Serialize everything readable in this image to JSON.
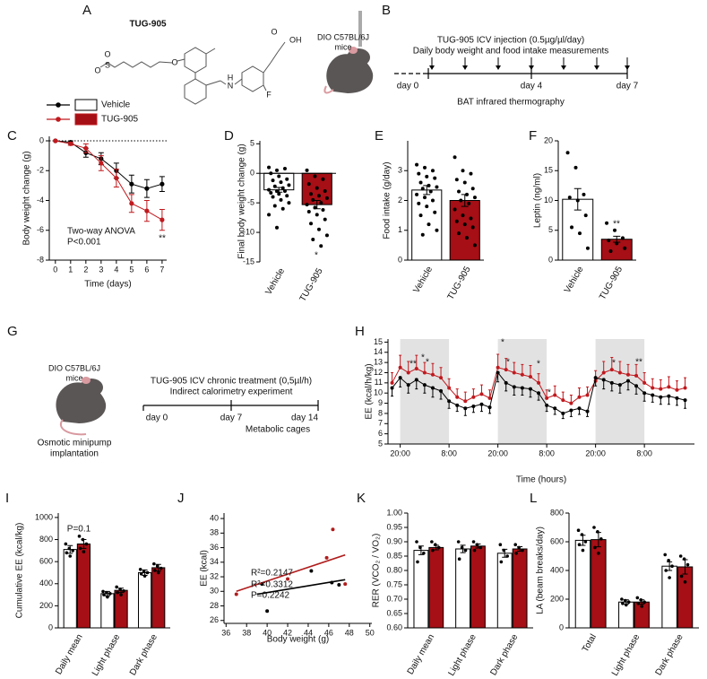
{
  "diagrams": [
    {
      "panel": "A",
      "title": "TUG-905",
      "structure_labels": [
        "O",
        "S",
        "O",
        "O",
        "H",
        "N",
        "F",
        "O",
        "OH"
      ]
    },
    {
      "panel": "B",
      "mouse_label": [
        "DIO C57BL/6J",
        "mice"
      ],
      "header": [
        "TUG-905 ICV injection (0.5µg/µl/day)",
        "Daily body weight and food intake measurements"
      ],
      "days": [
        "day 0",
        "day 4",
        "day 7"
      ],
      "footer": "BAT infrared thermography"
    },
    {
      "panel": "G",
      "mouse_label": [
        "DIO C57BL/6J",
        "mice"
      ],
      "header": [
        "TUG-905 ICV chronic treatment (0,5µl/h)",
        "Indirect calorimetry experiment"
      ],
      "days": [
        "day 0",
        "day 7",
        "day 14"
      ],
      "footer": "Metabolic cages",
      "note": [
        "Osmotic minipump",
        "implantation"
      ]
    }
  ],
  "chart_data": [
    {
      "panel": "C",
      "type": "line",
      "xlabel": "Time (days)",
      "ylabel": "Body weight change (g)",
      "x": [
        0,
        1,
        2,
        3,
        4,
        5,
        6,
        7
      ],
      "xlim": [
        -0.4,
        7.3
      ],
      "xticks": [
        0,
        1,
        2,
        3,
        4,
        5,
        6,
        7
      ],
      "ylim": [
        -8,
        0.3
      ],
      "yticks": [
        0,
        -2,
        -4,
        -6,
        -8
      ],
      "hline": 0,
      "series": [
        {
          "name": "Vehicle",
          "color": "#000000",
          "fill": "#ffffff",
          "values": [
            0,
            -0.1,
            -0.8,
            -1.2,
            -2.0,
            -2.9,
            -3.2,
            -2.9
          ],
          "errors": [
            0,
            0.1,
            0.3,
            0.4,
            0.5,
            0.6,
            0.6,
            0.5
          ]
        },
        {
          "name": "TUG-905",
          "color": "#c0191e",
          "fill": "#a50f15",
          "values": [
            0,
            -0.2,
            -0.5,
            -1.5,
            -2.5,
            -4.2,
            -4.7,
            -5.3
          ],
          "errors": [
            0,
            0.1,
            0.3,
            0.5,
            0.6,
            0.6,
            0.7,
            0.7
          ]
        }
      ],
      "annotations": [
        "Two-way ANOVA",
        "P<0.001",
        "**"
      ]
    },
    {
      "panel": "D",
      "type": "bar",
      "ylabel": "Final body weight change (g)",
      "categories": [
        "Vehicle",
        "TUG-905"
      ],
      "colors": [
        "#ffffff",
        "#a50f15"
      ],
      "values": [
        -2.8,
        -5.3
      ],
      "errors": [
        0.4,
        0.7
      ],
      "points": [
        [
          1,
          0.5,
          0.8,
          0,
          -0.5,
          -1,
          -1.2,
          -1.5,
          -2,
          -2.2,
          -2.5,
          -2.8,
          -3,
          -3,
          -3.3,
          -3.5,
          -3.8,
          -4,
          -4.5,
          -5,
          -5.5,
          -6,
          -7,
          -9.2
        ],
        [
          0.5,
          -0.5,
          -1,
          -1.8,
          -2.5,
          -3,
          -3.5,
          -3.8,
          -4.2,
          -4.5,
          -5,
          -5.3,
          -5.8,
          -6.2,
          -6.5,
          -7,
          -7.8,
          -8.5,
          -9.5,
          -10.5,
          -11.2,
          -12.3
        ]
      ],
      "ylim": [
        -15,
        5.5
      ],
      "yticks": [
        5,
        0,
        -5,
        -10,
        -15
      ],
      "annotations": [
        "*"
      ]
    },
    {
      "panel": "E",
      "type": "bar",
      "ylabel": "Food intake (g/day)",
      "categories": [
        "Vehicle",
        "TUG-905"
      ],
      "colors": [
        "#ffffff",
        "#a50f15"
      ],
      "values": [
        2.35,
        2.0
      ],
      "errors": [
        0.15,
        0.2
      ],
      "points": [
        [
          3.2,
          3.1,
          3.0,
          2.9,
          2.8,
          2.75,
          2.6,
          2.5,
          2.45,
          2.4,
          2.3,
          2.2,
          2.1,
          2.0,
          1.9,
          1.8,
          1.6,
          1.5,
          1.2,
          1.0,
          0.85
        ],
        [
          3.45,
          3.0,
          2.9,
          2.7,
          2.6,
          2.4,
          2.3,
          2.2,
          2.1,
          2.0,
          1.9,
          1.7,
          1.5,
          1.4,
          1.3,
          1.2,
          1.1,
          0.9,
          0.75,
          0.5
        ]
      ],
      "ylim": [
        0,
        4
      ],
      "yticks": [
        0,
        1,
        2,
        3
      ]
    },
    {
      "panel": "F",
      "type": "bar",
      "ylabel": "Leptin (ng/ml)",
      "categories": [
        "Vehicle",
        "TUG-905"
      ],
      "colors": [
        "#ffffff",
        "#a50f15"
      ],
      "values": [
        10.2,
        3.5
      ],
      "errors": [
        1.8,
        0.5
      ],
      "points": [
        [
          18,
          15.5,
          11,
          10.5,
          10,
          7.5,
          5.5,
          4.5,
          2
        ],
        [
          6.2,
          5,
          3.7,
          3.3,
          2.8,
          2,
          1.5
        ]
      ],
      "ylim": [
        0,
        20
      ],
      "yticks": [
        0,
        5,
        10,
        15,
        20
      ],
      "annotations": [
        "**"
      ]
    },
    {
      "panel": "H",
      "type": "line",
      "xlabel": "Time (hours)",
      "ylabel": "EE (kcal/h/kg)",
      "x": [
        -2,
        0,
        2,
        4,
        6,
        8,
        10,
        12,
        14,
        16,
        18,
        20,
        22,
        24,
        26,
        28,
        30,
        32,
        34,
        36,
        38,
        40,
        42,
        44,
        46,
        48,
        50,
        52,
        54,
        56,
        58,
        60,
        62,
        64,
        66,
        68,
        70
      ],
      "xlim": [
        -3,
        72.3
      ],
      "xticks": [
        {
          "value": 0,
          "label": "20:00"
        },
        {
          "value": 12,
          "label": "8:00"
        },
        {
          "value": 24,
          "label": "20:00"
        },
        {
          "value": 36,
          "label": "8:00"
        },
        {
          "value": 48,
          "label": "20:00"
        },
        {
          "value": 60,
          "label": "8:00"
        }
      ],
      "ylim": [
        5,
        15.3
      ],
      "yticks": [
        5,
        6,
        7,
        8,
        9,
        10,
        11,
        12,
        13,
        14,
        15
      ],
      "shaded": [
        [
          0,
          12
        ],
        [
          24,
          36
        ],
        [
          48,
          60
        ]
      ],
      "series": [
        {
          "color": "#c0191e",
          "error_direction": "up",
          "values": [
            11.0,
            12.5,
            12.0,
            12.4,
            12.0,
            11.8,
            11.5,
            10.5,
            9.6,
            9.2,
            9.6,
            9.9,
            9.5,
            12.5,
            12.3,
            12.0,
            11.8,
            11.6,
            11.0,
            9.5,
            9.8,
            9.3,
            9.0,
            9.6,
            9.8,
            11.2,
            12.0,
            12.3,
            12.0,
            11.8,
            11.7,
            11.0,
            10.5,
            10.4,
            10.6,
            10.3,
            10.5
          ],
          "errors": [
            1.0,
            1.2,
            1.1,
            1.3,
            1.0,
            1.1,
            1.0,
            0.9,
            0.8,
            0.9,
            0.8,
            0.9,
            0.8,
            1.3,
            1.1,
            1.0,
            1.0,
            1.1,
            0.9,
            0.8,
            0.9,
            0.8,
            0.8,
            0.9,
            0.8,
            1.0,
            1.1,
            1.2,
            1.1,
            1.0,
            1.1,
            1.0,
            0.9,
            0.9,
            1.0,
            0.9,
            1.0
          ]
        },
        {
          "color": "#000000",
          "error_direction": "down",
          "values": [
            10.5,
            11.5,
            10.8,
            11.3,
            10.8,
            10.5,
            10.2,
            9.2,
            8.8,
            8.5,
            8.7,
            8.9,
            8.6,
            12.0,
            11.0,
            10.6,
            10.5,
            10.4,
            10.0,
            8.8,
            8.5,
            8.0,
            8.3,
            8.5,
            8.2,
            11.5,
            11.3,
            11.0,
            10.8,
            11.2,
            10.7,
            10.0,
            9.8,
            9.6,
            9.7,
            9.5,
            9.3
          ],
          "errors": [
            0.8,
            0.9,
            0.8,
            0.9,
            0.8,
            0.9,
            0.8,
            0.7,
            0.6,
            0.7,
            0.6,
            0.7,
            0.6,
            0.9,
            0.8,
            0.8,
            0.7,
            0.8,
            0.7,
            0.6,
            0.6,
            0.5,
            0.6,
            0.6,
            0.5,
            0.8,
            0.9,
            0.8,
            0.8,
            0.9,
            0.8,
            0.8,
            0.7,
            0.7,
            0.8,
            0.7,
            0.8
          ]
        }
      ],
      "annotations": [
        "**",
        "*",
        "*",
        "*",
        "*",
        "*",
        "*",
        "*",
        "**"
      ]
    },
    {
      "panel": "I",
      "type": "grouped_bar",
      "ylabel": "Cumulative EE (kcal/kg)",
      "categories": [
        "Daily mean",
        "Light phase",
        "Dark phase"
      ],
      "ylim": [
        0,
        1040
      ],
      "yticks": [
        0,
        200,
        400,
        600,
        800,
        1000
      ],
      "series": [
        {
          "color": "#ffffff",
          "values": [
            710,
            310,
            500
          ],
          "errors": [
            35,
            20,
            25
          ],
          "points": [
            [
              760,
              720,
              700,
              680,
              650
            ],
            [
              330,
              320,
              310,
              300,
              280
            ],
            [
              530,
              510,
              500,
              490,
              470
            ]
          ]
        },
        {
          "color": "#a50f15",
          "values": [
            760,
            340,
            545
          ],
          "errors": [
            40,
            20,
            30
          ],
          "points": [
            [
              830,
              800,
              760,
              720,
              690
            ],
            [
              370,
              350,
              335,
              320,
              300
            ],
            [
              580,
              560,
              540,
              520,
              500
            ]
          ]
        }
      ],
      "annotations": [
        "P=0.1"
      ]
    },
    {
      "panel": "J",
      "type": "scatter",
      "xlabel": "Body weight (g)",
      "ylabel": "EE (kcal)",
      "xlim": [
        35.8,
        50.2
      ],
      "xticks": [
        36,
        38,
        40,
        42,
        44,
        46,
        48,
        50
      ],
      "ylim": [
        25.6,
        40.75
      ],
      "yticks": [
        26,
        28,
        30,
        32,
        34,
        36,
        38,
        40
      ],
      "series": [
        {
          "color": "#000000",
          "x": [
            39.5,
            40,
            44.3,
            46.3,
            47
          ],
          "values": [
            31.0,
            27.3,
            32.8,
            31.2,
            30.9
          ],
          "fit_x": [
            39,
            47.6
          ],
          "fit": [
            29.6,
            31.6
          ]
        },
        {
          "color": "#b01c1c",
          "x": [
            37,
            42,
            45.8,
            46.4,
            47.6
          ],
          "values": [
            29.6,
            31.7,
            34.6,
            38.5,
            31.0
          ],
          "fit_x": [
            37,
            47.6
          ],
          "fit": [
            30.0,
            35.0
          ]
        }
      ],
      "annotations": [
        "R²=0.2147",
        "R²=0.3312",
        "P=0.2242"
      ]
    },
    {
      "panel": "K",
      "type": "grouped_bar",
      "ylabel": "RER (VCO₂ / VO₂)",
      "categories": [
        "Daily mean",
        "Light phase",
        "Dark phase"
      ],
      "ylim": [
        0.6,
        1.0
      ],
      "yticks": [
        {
          "value": 0.6,
          "label": "0.60"
        },
        {
          "value": 0.65,
          "label": "0.65"
        },
        {
          "value": 0.7,
          "label": "0.70"
        },
        {
          "value": 0.75,
          "label": "0.75"
        },
        {
          "value": 0.8,
          "label": "0.80"
        },
        {
          "value": 0.85,
          "label": "0.85"
        },
        {
          "value": 0.9,
          "label": "0.90"
        },
        {
          "value": 0.95,
          "label": "0.95"
        },
        {
          "value": 1.0,
          "label": "1.00"
        }
      ],
      "series": [
        {
          "color": "#ffffff",
          "values": [
            0.87,
            0.875,
            0.86
          ],
          "errors": [
            0.015,
            0.013,
            0.014
          ],
          "points": [
            [
              0.9,
              0.88,
              0.86,
              0.83
            ],
            [
              0.9,
              0.88,
              0.87,
              0.84
            ],
            [
              0.89,
              0.87,
              0.85,
              0.83
            ]
          ]
        },
        {
          "color": "#a50f15",
          "values": [
            0.88,
            0.885,
            0.875
          ],
          "errors": [
            0.008,
            0.007,
            0.008
          ],
          "points": [
            [
              0.9,
              0.89,
              0.88,
              0.87
            ],
            [
              0.9,
              0.89,
              0.88,
              0.87
            ],
            [
              0.89,
              0.88,
              0.87,
              0.86
            ]
          ]
        }
      ]
    },
    {
      "panel": "L",
      "type": "grouped_bar",
      "ylabel": "LA (beam breaks/day)",
      "categories": [
        "Total",
        "Light phase",
        "Dark phase"
      ],
      "ylim": [
        0,
        800
      ],
      "yticks": [
        0,
        200,
        400,
        600,
        800
      ],
      "series": [
        {
          "color": "#ffffff",
          "values": [
            610,
            180,
            430
          ],
          "errors": [
            35,
            15,
            30
          ],
          "points": [
            [
              680,
              650,
              600,
              580,
              540
            ],
            [
              200,
              190,
              180,
              170,
              160
            ],
            [
              510,
              470,
              430,
              400,
              350
            ]
          ]
        },
        {
          "color": "#a50f15",
          "values": [
            615,
            180,
            425
          ],
          "errors": [
            50,
            15,
            50
          ],
          "points": [
            [
              700,
              670,
              620,
              560,
              520
            ],
            [
              210,
              195,
              180,
              170,
              150
            ],
            [
              500,
              480,
              440,
              360,
              320
            ]
          ]
        }
      ]
    }
  ]
}
